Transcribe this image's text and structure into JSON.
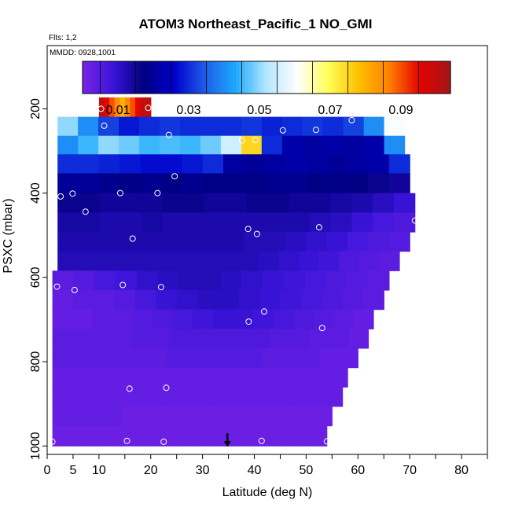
{
  "chart_data": {
    "type": "heatmap",
    "title": "ATOM3 Northeast_Pacific_1 NO_GMI",
    "flights_label": "Flts: 1,2",
    "date_label": "MMDD: 0928,1001",
    "xlabel": "Latitude (deg N)",
    "ylabel": "PSXC (mbar)",
    "xlim": [
      0,
      85
    ],
    "ylim": [
      1020,
      50
    ],
    "x_ticks": [
      0,
      5,
      10,
      20,
      30,
      40,
      50,
      60,
      70,
      80
    ],
    "x_minor_ticks": [
      0,
      5,
      10,
      15,
      20,
      25,
      30,
      35,
      40,
      45,
      50,
      55,
      60,
      65,
      70,
      75,
      80,
      85
    ],
    "y_ticks": [
      200,
      400,
      600,
      800,
      1000
    ],
    "colorbar": {
      "range": [
        0,
        0.104
      ],
      "tick_values": [
        0.01,
        0.03,
        0.05,
        0.07,
        0.09
      ],
      "tick_labels": [
        "0.01",
        "0.03",
        "0.05",
        "0.07",
        "0.09"
      ],
      "colors": [
        "#7a22e6",
        "#3a14d9",
        "#000080",
        "#0000cd",
        "#1e5ee6",
        "#1eaaff",
        "#b4e6ff",
        "#ffffff",
        "#ffff5a",
        "#ffc000",
        "#ff8000",
        "#e60000",
        "#a01818"
      ]
    },
    "layers": [
      {
        "p_top": 173,
        "p_bot": 219,
        "lat_start": 10,
        "lat_end": 20,
        "values": [
          0.1,
          0.095,
          0.09,
          0.085,
          0.08,
          0.085,
          0.09,
          0.095,
          0.1,
          0.1
        ]
      },
      {
        "p_top": 219,
        "p_bot": 264,
        "lat_start": 2,
        "lat_end": 69,
        "values": [
          0.05,
          0.04,
          0.032,
          0.028,
          0.03,
          0.031,
          0.03,
          0.03,
          0.03,
          0.031,
          0.029,
          0.03,
          0.031,
          0.03,
          0.032,
          0.04,
          0.06
        ]
      },
      {
        "p_top": 264,
        "p_bot": 308,
        "lat_start": 2,
        "lat_end": 69,
        "values": [
          0.04,
          0.045,
          0.05,
          0.048,
          0.045,
          0.046,
          0.045,
          0.048,
          0.055,
          0.075,
          0.03,
          0.022,
          0.021,
          0.022,
          0.021,
          0.022,
          0.04
        ]
      },
      {
        "p_top": 308,
        "p_bot": 353,
        "lat_start": 2,
        "lat_end": 70,
        "values": [
          0.03,
          0.03,
          0.029,
          0.028,
          0.027,
          0.027,
          0.028,
          0.03,
          0.021,
          0.02,
          0.021,
          0.022,
          0.021,
          0.02,
          0.021,
          0.022,
          0.03
        ]
      },
      {
        "p_top": 353,
        "p_bot": 400,
        "lat_start": 2,
        "lat_end": 70,
        "values": [
          0.02,
          0.02,
          0.019,
          0.018,
          0.019,
          0.018,
          0.019,
          0.018,
          0.018,
          0.018,
          0.019,
          0.019,
          0.018,
          0.018,
          0.017,
          0.016,
          0.015
        ]
      },
      {
        "p_top": 400,
        "p_bot": 446,
        "lat_start": 2,
        "lat_end": 71,
        "values": [
          0.016,
          0.016,
          0.015,
          0.015,
          0.015,
          0.016,
          0.016,
          0.015,
          0.015,
          0.016,
          0.016,
          0.015,
          0.015,
          0.014,
          0.013,
          0.011,
          0.009
        ]
      },
      {
        "p_top": 446,
        "p_bot": 492,
        "lat_start": 2,
        "lat_end": 71,
        "values": [
          0.014,
          0.014,
          0.013,
          0.013,
          0.014,
          0.013,
          0.013,
          0.013,
          0.013,
          0.013,
          0.013,
          0.013,
          0.012,
          0.011,
          0.009,
          0.007,
          0.006
        ]
      },
      {
        "p_top": 492,
        "p_bot": 538,
        "lat_start": 2,
        "lat_end": 70,
        "values": [
          0.013,
          0.013,
          0.013,
          0.013,
          0.013,
          0.013,
          0.013,
          0.013,
          0.013,
          0.012,
          0.012,
          0.011,
          0.01,
          0.009,
          0.007,
          0.006,
          0.005
        ]
      },
      {
        "p_top": 538,
        "p_bot": 584,
        "lat_start": 2,
        "lat_end": 68,
        "values": [
          0.012,
          0.012,
          0.012,
          0.012,
          0.012,
          0.012,
          0.012,
          0.012,
          0.012,
          0.012,
          0.011,
          0.01,
          0.009,
          0.008,
          0.006,
          0.005,
          0.004
        ]
      },
      {
        "p_top": 584,
        "p_bot": 630,
        "lat_start": 1,
        "lat_end": 66,
        "values": [
          0.004,
          0.005,
          0.007,
          0.008,
          0.01,
          0.011,
          0.012,
          0.012,
          0.011,
          0.01,
          0.009,
          0.008,
          0.007,
          0.006,
          0.005,
          0.004
        ]
      },
      {
        "p_top": 630,
        "p_bot": 676,
        "lat_start": 1,
        "lat_end": 65,
        "values": [
          0.003,
          0.004,
          0.004,
          0.005,
          0.007,
          0.009,
          0.01,
          0.011,
          0.011,
          0.01,
          0.009,
          0.008,
          0.007,
          0.006,
          0.005,
          0.004
        ]
      },
      {
        "p_top": 676,
        "p_bot": 722,
        "lat_start": 1,
        "lat_end": 63,
        "values": [
          0.003,
          0.003,
          0.004,
          0.004,
          0.005,
          0.006,
          0.007,
          0.008,
          0.009,
          0.009,
          0.008,
          0.007,
          0.006,
          0.005,
          0.004,
          0.003
        ]
      },
      {
        "p_top": 722,
        "p_bot": 768,
        "lat_start": 1,
        "lat_end": 62,
        "values": [
          0.004,
          0.004,
          0.004,
          0.004,
          0.005,
          0.005,
          0.006,
          0.006,
          0.006,
          0.006,
          0.006,
          0.005,
          0.005,
          0.004,
          0.004,
          0.003
        ]
      },
      {
        "p_top": 768,
        "p_bot": 814,
        "lat_start": 1,
        "lat_end": 60,
        "values": [
          0.004,
          0.004,
          0.004,
          0.004,
          0.004,
          0.004,
          0.005,
          0.005,
          0.005,
          0.005,
          0.005,
          0.004,
          0.004,
          0.004,
          0.003,
          0.003
        ]
      },
      {
        "p_top": 814,
        "p_bot": 860,
        "lat_start": 1,
        "lat_end": 58,
        "values": [
          0.003,
          0.003,
          0.003,
          0.003,
          0.003,
          0.003,
          0.003,
          0.003,
          0.003,
          0.003,
          0.003,
          0.003,
          0.003,
          0.003,
          0.003,
          0.003
        ]
      },
      {
        "p_top": 860,
        "p_bot": 906,
        "lat_start": 1,
        "lat_end": 57,
        "values": [
          0.003,
          0.003,
          0.003,
          0.003,
          0.003,
          0.003,
          0.003,
          0.003,
          0.003,
          0.003,
          0.003,
          0.003,
          0.003,
          0.003,
          0.003,
          0.003
        ]
      },
      {
        "p_top": 906,
        "p_bot": 952,
        "lat_start": 1,
        "lat_end": 55,
        "values": [
          0.003,
          0.003,
          0.003,
          0.003,
          0.002,
          0.002,
          0.002,
          0.002,
          0.002,
          0.002,
          0.002,
          0.002,
          0.002,
          0.002,
          0.002,
          0.002
        ]
      },
      {
        "p_top": 952,
        "p_bot": 1000,
        "lat_start": 1,
        "lat_end": 54,
        "values": [
          0.002,
          0.002,
          0.002,
          0.002,
          0.002,
          0.002,
          0.002,
          0.002,
          0.002,
          0.002,
          0.002,
          0.002,
          0.002,
          0.002,
          0.002,
          0.002
        ]
      }
    ],
    "sample_points": [
      {
        "lat": 10.4,
        "p": 200
      },
      {
        "lat": 19.5,
        "p": 198
      },
      {
        "lat": 11.0,
        "p": 240
      },
      {
        "lat": 58.8,
        "p": 227
      },
      {
        "lat": 68.8,
        "p": 227
      },
      {
        "lat": 23.5,
        "p": 262
      },
      {
        "lat": 45.5,
        "p": 251
      },
      {
        "lat": 51.9,
        "p": 250
      },
      {
        "lat": 37.6,
        "p": 275
      },
      {
        "lat": 40.2,
        "p": 274
      },
      {
        "lat": 24.6,
        "p": 360
      },
      {
        "lat": 2.6,
        "p": 408
      },
      {
        "lat": 4.9,
        "p": 401
      },
      {
        "lat": 14.1,
        "p": 400
      },
      {
        "lat": 21.3,
        "p": 400
      },
      {
        "lat": 7.4,
        "p": 444
      },
      {
        "lat": 71.0,
        "p": 465
      },
      {
        "lat": 38.8,
        "p": 485
      },
      {
        "lat": 40.5,
        "p": 497
      },
      {
        "lat": 52.5,
        "p": 481
      },
      {
        "lat": 16.5,
        "p": 508
      },
      {
        "lat": 1.9,
        "p": 622
      },
      {
        "lat": 5.3,
        "p": 630
      },
      {
        "lat": 14.6,
        "p": 618
      },
      {
        "lat": 22.0,
        "p": 623
      },
      {
        "lat": 41.9,
        "p": 681
      },
      {
        "lat": 38.9,
        "p": 705
      },
      {
        "lat": 53.1,
        "p": 720
      },
      {
        "lat": 15.9,
        "p": 864
      },
      {
        "lat": 23.0,
        "p": 862
      },
      {
        "lat": 1.0,
        "p": 990
      },
      {
        "lat": 15.4,
        "p": 988
      },
      {
        "lat": 22.5,
        "p": 990
      },
      {
        "lat": 41.4,
        "p": 988
      },
      {
        "lat": 54.0,
        "p": 989
      }
    ],
    "marker": {
      "lat": 34.8,
      "p": 1000
    }
  }
}
